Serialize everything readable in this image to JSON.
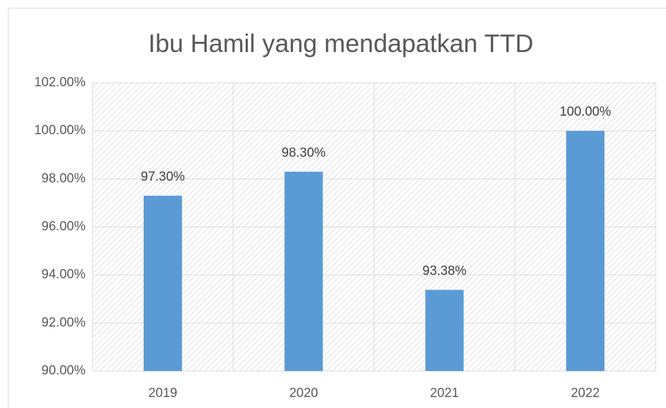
{
  "chart_data": {
    "type": "bar",
    "title": "Ibu Hamil yang mendapatkan TTD",
    "categories": [
      "2019",
      "2020",
      "2021",
      "2022"
    ],
    "values": [
      97.3,
      98.3,
      93.38,
      100
    ],
    "value_labels": [
      "97.30%",
      "98.30%",
      "93.38%",
      "100.00%"
    ],
    "color": "#5b9bd5",
    "ylim": [
      90,
      102
    ],
    "yticks": [
      {
        "value": 90,
        "label": "90.00%"
      },
      {
        "value": 92,
        "label": "92.00%"
      },
      {
        "value": 94,
        "label": "94.00%"
      },
      {
        "value": 96,
        "label": "96.00%"
      },
      {
        "value": 98,
        "label": "98.00%"
      },
      {
        "value": 100,
        "label": "100.00%"
      },
      {
        "value": 102,
        "label": "102.00%"
      }
    ],
    "grid": true
  }
}
